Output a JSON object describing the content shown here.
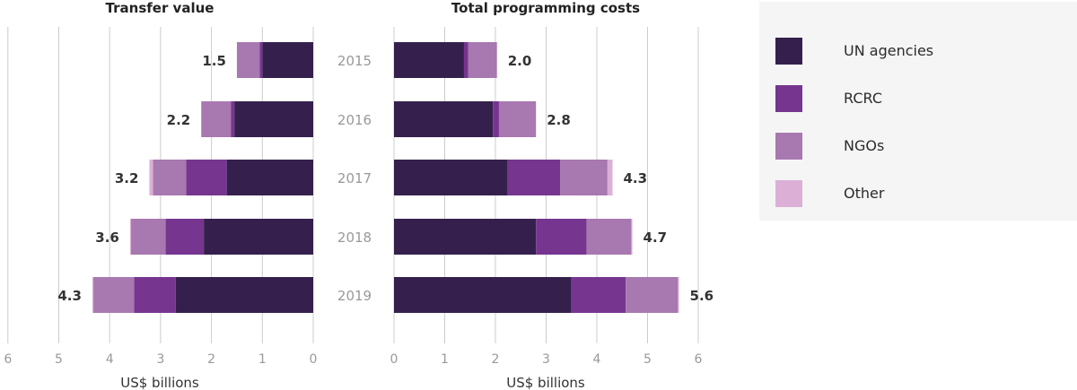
{
  "colors": {
    "UN agencies": "#35204d",
    "RCRC": "#76358f",
    "NGOs": "#a878b0",
    "Other": "#dcb0d6",
    "grid": "#cccccc",
    "year_text": "#999999",
    "tick_text": "#999999",
    "label_text": "#333333",
    "legend_bg": "#f5f5f5"
  },
  "legend": [
    {
      "name": "UN agencies",
      "color": "#35204d"
    },
    {
      "name": "RCRC",
      "color": "#76358f"
    },
    {
      "name": "NGOs",
      "color": "#a878b0"
    },
    {
      "name": "Other",
      "color": "#dcb0d6"
    }
  ],
  "chart_data": [
    {
      "type": "bar",
      "orientation": "horizontal",
      "stacked": true,
      "direction": "right-to-left",
      "title": "Transfer value",
      "xlabel": "US$ billions",
      "xlim": [
        0,
        6
      ],
      "xticks": [
        "0",
        "1",
        "2",
        "3",
        "4",
        "5",
        "6"
      ],
      "grid": true,
      "categories": [
        "2015",
        "2016",
        "2017",
        "2018",
        "2019"
      ],
      "series": [
        {
          "name": "UN agencies",
          "values": [
            1.0,
            1.55,
            1.7,
            2.15,
            2.7
          ]
        },
        {
          "name": "RCRC",
          "values": [
            0.05,
            0.07,
            0.8,
            0.75,
            0.82
          ]
        },
        {
          "name": "NGOs",
          "values": [
            0.45,
            0.58,
            0.65,
            0.68,
            0.8
          ]
        },
        {
          "name": "Other",
          "values": [
            0.0,
            0.0,
            0.07,
            0.02,
            0.02
          ]
        }
      ],
      "totals": [
        "1.5",
        "2.2",
        "3.2",
        "3.6",
        "4.3"
      ]
    },
    {
      "type": "bar",
      "orientation": "horizontal",
      "stacked": true,
      "title": "Total programming costs",
      "xlabel": "US$ billions",
      "xlim": [
        0,
        6
      ],
      "xticks": [
        "0",
        "1",
        "2",
        "3",
        "4",
        "5",
        "6"
      ],
      "grid": true,
      "categories": [
        "2015",
        "2016",
        "2017",
        "2018",
        "2019"
      ],
      "series": [
        {
          "name": "UN agencies",
          "values": [
            1.38,
            1.95,
            2.23,
            2.8,
            3.5
          ]
        },
        {
          "name": "RCRC",
          "values": [
            0.08,
            0.12,
            1.05,
            1.0,
            1.07
          ]
        },
        {
          "name": "NGOs",
          "values": [
            0.57,
            0.73,
            0.93,
            0.88,
            1.03
          ]
        },
        {
          "name": "Other",
          "values": [
            0.0,
            0.0,
            0.1,
            0.02,
            0.02
          ]
        }
      ],
      "totals": [
        "2.0",
        "2.8",
        "4.3",
        "4.7",
        "5.6"
      ]
    }
  ]
}
